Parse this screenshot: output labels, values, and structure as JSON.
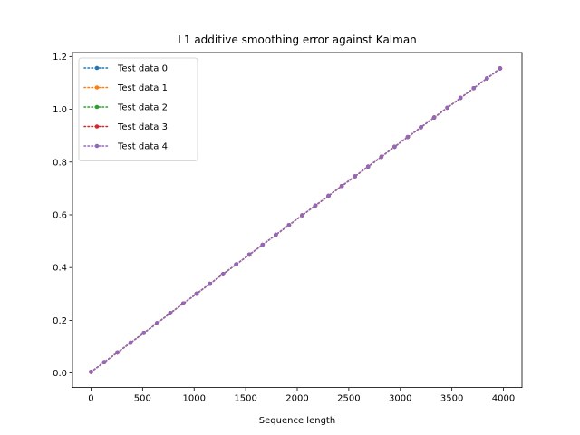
{
  "chart_data": {
    "type": "line",
    "title": "L1 additive smoothing error against Kalman",
    "xlabel": "Sequence length",
    "ylabel": "",
    "xlim": [
      -180,
      4180
    ],
    "ylim": [
      -0.055,
      1.215
    ],
    "xticks": [
      0,
      500,
      1000,
      1500,
      2000,
      2500,
      3000,
      3500,
      4000
    ],
    "yticks": [
      0.0,
      0.2,
      0.4,
      0.6,
      0.8,
      1.0,
      1.2
    ],
    "ytick_labels": [
      "0.0",
      "0.2",
      "0.4",
      "0.6",
      "0.8",
      "1.0",
      "1.2"
    ],
    "grid": false,
    "legend_position": "upper-left",
    "line_style": "dotted",
    "marker": "circle",
    "x": [
      0,
      128,
      256,
      384,
      512,
      640,
      768,
      896,
      1024,
      1152,
      1280,
      1408,
      1536,
      1664,
      1792,
      1920,
      2048,
      2176,
      2304,
      2432,
      2560,
      2688,
      2816,
      2944,
      3072,
      3200,
      3328,
      3456,
      3584,
      3712,
      3840,
      3968
    ],
    "series": [
      {
        "name": "Test data 0",
        "color": "#1f77b4",
        "values": [
          0.004,
          0.041,
          0.078,
          0.115,
          0.152,
          0.189,
          0.227,
          0.264,
          0.301,
          0.338,
          0.375,
          0.412,
          0.449,
          0.486,
          0.524,
          0.561,
          0.598,
          0.635,
          0.672,
          0.709,
          0.746,
          0.783,
          0.82,
          0.858,
          0.895,
          0.932,
          0.969,
          1.006,
          1.043,
          1.08,
          1.117,
          1.155
        ]
      },
      {
        "name": "Test data 1",
        "color": "#ff7f0e",
        "values": [
          0.004,
          0.041,
          0.078,
          0.115,
          0.152,
          0.189,
          0.227,
          0.264,
          0.301,
          0.338,
          0.375,
          0.412,
          0.449,
          0.486,
          0.524,
          0.561,
          0.598,
          0.635,
          0.672,
          0.709,
          0.746,
          0.783,
          0.82,
          0.858,
          0.895,
          0.932,
          0.969,
          1.006,
          1.043,
          1.08,
          1.117,
          1.155
        ]
      },
      {
        "name": "Test data 2",
        "color": "#2ca02c",
        "values": [
          0.004,
          0.041,
          0.078,
          0.115,
          0.152,
          0.189,
          0.227,
          0.264,
          0.301,
          0.338,
          0.375,
          0.412,
          0.449,
          0.486,
          0.524,
          0.561,
          0.598,
          0.635,
          0.672,
          0.709,
          0.746,
          0.783,
          0.82,
          0.858,
          0.895,
          0.932,
          0.969,
          1.006,
          1.043,
          1.08,
          1.117,
          1.155
        ]
      },
      {
        "name": "Test data 3",
        "color": "#d62728",
        "values": [
          0.004,
          0.041,
          0.078,
          0.115,
          0.152,
          0.189,
          0.227,
          0.264,
          0.301,
          0.338,
          0.375,
          0.412,
          0.449,
          0.486,
          0.524,
          0.561,
          0.598,
          0.635,
          0.672,
          0.709,
          0.746,
          0.783,
          0.82,
          0.858,
          0.895,
          0.932,
          0.969,
          1.006,
          1.043,
          1.08,
          1.117,
          1.155
        ]
      },
      {
        "name": "Test data 4",
        "color": "#9467bd",
        "values": [
          0.004,
          0.041,
          0.078,
          0.115,
          0.152,
          0.189,
          0.227,
          0.264,
          0.301,
          0.338,
          0.375,
          0.412,
          0.449,
          0.486,
          0.524,
          0.561,
          0.598,
          0.635,
          0.672,
          0.709,
          0.746,
          0.783,
          0.82,
          0.858,
          0.895,
          0.932,
          0.969,
          1.006,
          1.043,
          1.08,
          1.117,
          1.155
        ]
      }
    ]
  }
}
